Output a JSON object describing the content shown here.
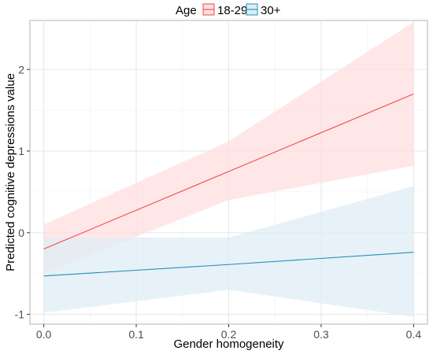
{
  "chart_data": {
    "type": "line",
    "title": "",
    "xlabel": "Gender homogeneity",
    "ylabel": "Predicted cognitive depressions value",
    "xlim": [
      -0.015,
      0.415
    ],
    "ylim": [
      -1.12,
      2.6
    ],
    "x_ticks": [
      0.0,
      0.1,
      0.2,
      0.3,
      0.4
    ],
    "x_tick_labels": [
      "0.0",
      "0.1",
      "0.2",
      "0.3",
      "0.4"
    ],
    "y_ticks": [
      -1,
      0,
      1,
      2
    ],
    "y_tick_labels": [
      "-1",
      "0",
      "1",
      "2"
    ],
    "grid": true,
    "legend": {
      "title": "Age",
      "position": "top"
    },
    "series": [
      {
        "name": "18-29",
        "color": "#f04a45",
        "ribbon_color": "#ffdfe0",
        "x": [
          0.0,
          0.2,
          0.4
        ],
        "y": [
          -0.2,
          0.75,
          1.7
        ],
        "lower": [
          -0.5,
          0.4,
          0.82
        ],
        "upper": [
          0.1,
          1.12,
          2.58
        ]
      },
      {
        "name": "30+",
        "color": "#1f8fb8",
        "ribbon_color": "#dfecf5",
        "x": [
          0.0,
          0.2,
          0.4
        ],
        "y": [
          -0.53,
          -0.39,
          -0.24
        ],
        "lower": [
          -0.98,
          -0.7,
          -1.03
        ],
        "upper": [
          -0.06,
          -0.06,
          0.57
        ]
      }
    ]
  }
}
